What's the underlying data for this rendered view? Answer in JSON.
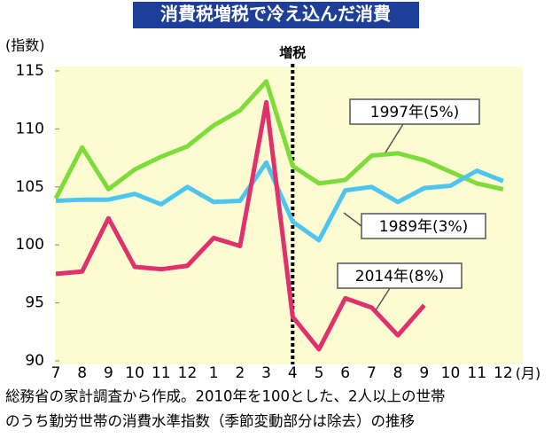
{
  "chart_data": {
    "type": "line",
    "title": "消費税増税で冷え込んだ消費",
    "y_label": "(指数)",
    "x_unit": "(月)",
    "categories": [
      "7",
      "8",
      "9",
      "10",
      "11",
      "12",
      "1",
      "2",
      "3",
      "4",
      "5",
      "6",
      "7",
      "8",
      "9",
      "10",
      "11",
      "12"
    ],
    "series": [
      {
        "name": "1997年(5%)",
        "color": "#7ddc3a",
        "values": [
          104.0,
          108.4,
          104.8,
          106.5,
          107.6,
          108.5,
          110.3,
          111.6,
          114.1,
          106.8,
          105.3,
          105.6,
          107.7,
          107.9,
          107.3,
          106.3,
          105.3,
          104.8
        ]
      },
      {
        "name": "1989年(3%)",
        "color": "#4cc6ef",
        "values": [
          103.8,
          103.9,
          103.9,
          104.4,
          103.5,
          105.0,
          103.7,
          103.8,
          107.1,
          102.0,
          100.4,
          104.7,
          105.0,
          103.7,
          104.9,
          105.1,
          106.4,
          105.5
        ]
      },
      {
        "name": "2014年(8%)",
        "color": "#e0306e",
        "values": [
          97.5,
          97.7,
          102.3,
          98.1,
          97.9,
          98.2,
          100.6,
          99.9,
          112.3,
          93.8,
          91.0,
          95.4,
          94.6,
          92.2,
          94.8,
          null,
          null,
          null
        ]
      }
    ],
    "ylim": [
      90,
      115
    ],
    "yticks": [
      90,
      95,
      100,
      105,
      110,
      115
    ],
    "annotation": {
      "text": "増税",
      "category": "4"
    },
    "note": [
      "総務省の家計調査から作成。2010年を100とした、2人以上の世帯",
      "のうち勤労世帯の消費水準指数（季節変動部分は除去）の推移"
    ]
  }
}
